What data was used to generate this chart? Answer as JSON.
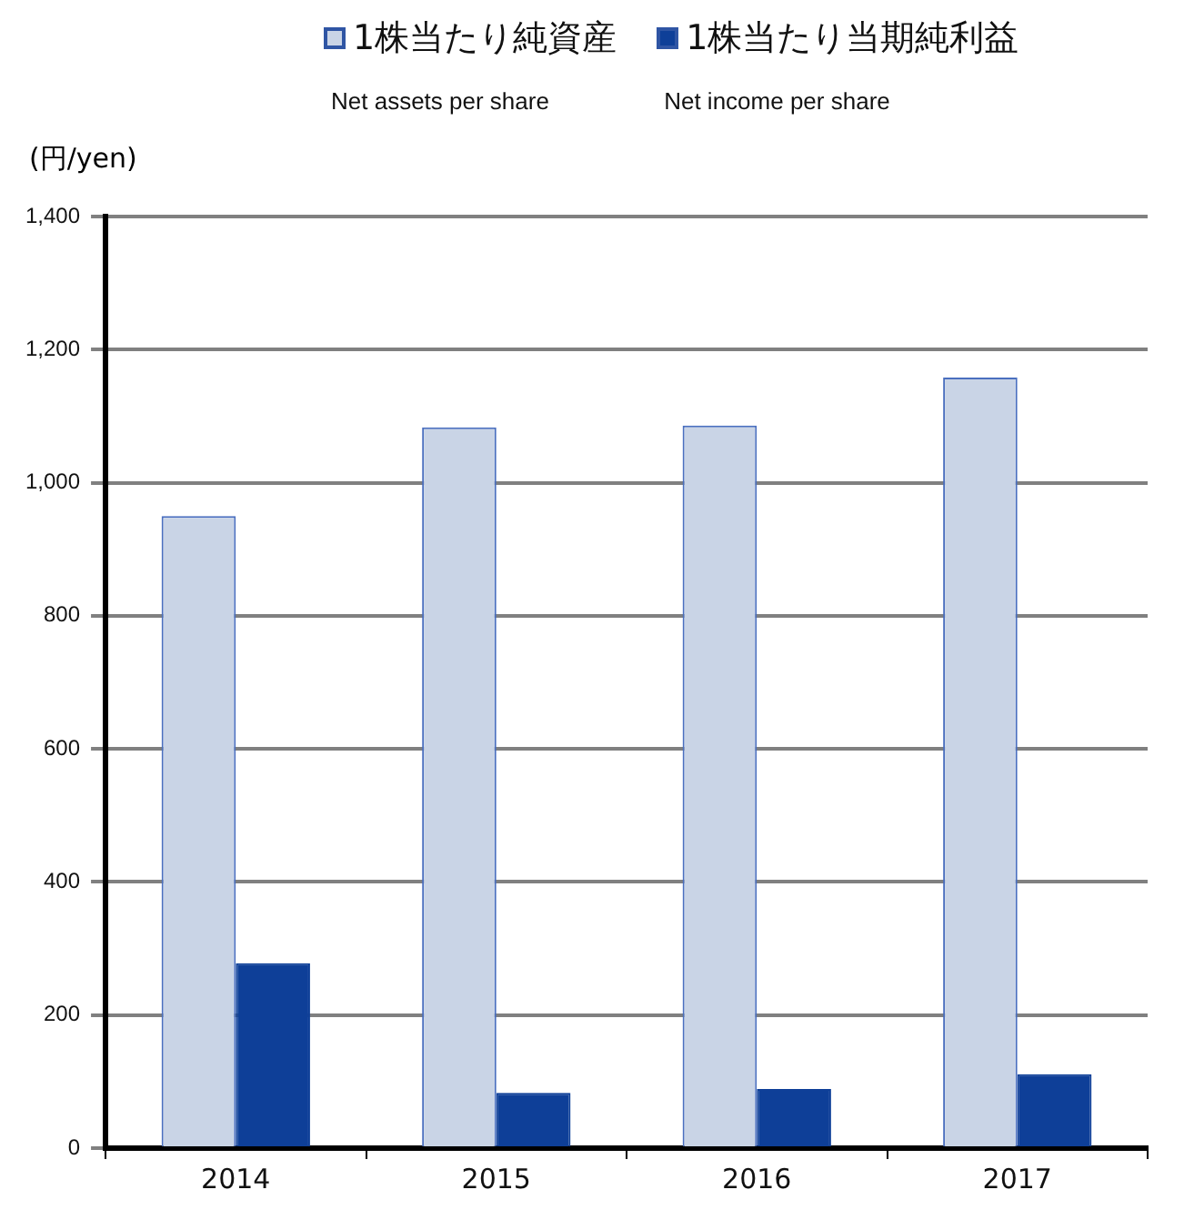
{
  "chart_data": {
    "type": "bar",
    "ylabel": "(円/yen)",
    "categories": [
      "2014",
      "2015",
      "2016",
      "2017"
    ],
    "series": [
      {
        "name": "1株当たり純資産",
        "color": "#c9d4e6",
        "values": [
          950,
          1083,
          1086,
          1158
        ]
      },
      {
        "name": "1株当たり当期純利益",
        "color": "#0e3f98",
        "values": [
          278,
          83,
          89,
          111
        ]
      }
    ],
    "annotations": [
      "Net assets per share",
      "Net income per share"
    ],
    "ylim": [
      0,
      1400
    ],
    "yticks": [
      0,
      {
        "value": 200,
        "label": "200"
      },
      {
        "value": 400,
        "label": "400"
      },
      {
        "value": 600,
        "label": "600"
      },
      {
        "value": 800,
        "label": "800"
      },
      {
        "value": 1000,
        "label": "1,000"
      },
      {
        "value": 1200,
        "label": "1,200"
      },
      {
        "value": 1400,
        "label": "1,400"
      }
    ],
    "grid": "y",
    "legend": "top"
  }
}
